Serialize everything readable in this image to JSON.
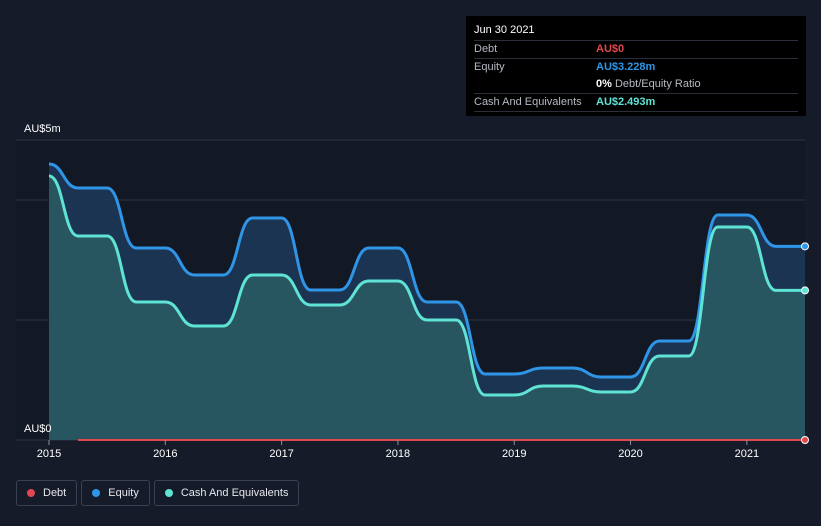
{
  "tooltip": {
    "date": "Jun 30 2021",
    "rows": [
      {
        "label": "Debt",
        "value": "AU$0",
        "color": "#e0484f"
      },
      {
        "label": "Equity",
        "value": "AU$3.228m",
        "color": "#2f95e6"
      },
      {
        "ratio_pct": "0%",
        "ratio_text": "Debt/Equity Ratio"
      },
      {
        "label": "Cash And Equivalents",
        "value": "AU$2.493m",
        "color": "#5ee3d4"
      }
    ]
  },
  "legend": [
    {
      "label": "Debt",
      "color": "#e0484f"
    },
    {
      "label": "Equity",
      "color": "#2f95e6"
    },
    {
      "label": "Cash And Equivalents",
      "color": "#5ee3d4"
    }
  ],
  "chart_data": {
    "type": "area",
    "y_top_label": "AU$5m",
    "y_bottom_label": "AU$0",
    "ylim": [
      0,
      5
    ],
    "xlim": [
      2014.9,
      2021.5
    ],
    "x_ticks": [
      {
        "value": 2015,
        "label": "2015"
      },
      {
        "value": 2016,
        "label": "2016"
      },
      {
        "value": 2017,
        "label": "2017"
      },
      {
        "value": 2018,
        "label": "2018"
      },
      {
        "value": 2019,
        "label": "2019"
      },
      {
        "value": 2020,
        "label": "2020"
      },
      {
        "value": 2021,
        "label": "2021"
      }
    ],
    "grid": true,
    "series": [
      {
        "name": "Equity",
        "color": "#2f95e6",
        "x": [
          2015.0,
          2015.25,
          2015.5,
          2015.75,
          2016.0,
          2016.25,
          2016.5,
          2016.75,
          2017.0,
          2017.25,
          2017.5,
          2017.75,
          2018.0,
          2018.25,
          2018.5,
          2018.75,
          2019.0,
          2019.25,
          2019.5,
          2019.75,
          2020.0,
          2020.25,
          2020.5,
          2020.75,
          2021.0,
          2021.25,
          2021.5
        ],
        "values": [
          4.6,
          4.2,
          4.2,
          3.2,
          3.2,
          2.75,
          2.75,
          3.7,
          3.7,
          2.5,
          2.5,
          3.2,
          3.2,
          2.3,
          2.3,
          1.1,
          1.1,
          1.2,
          1.2,
          1.05,
          1.05,
          1.65,
          1.65,
          3.75,
          3.75,
          3.228,
          3.228
        ]
      },
      {
        "name": "Cash And Equivalents",
        "color": "#5ee3d4",
        "x": [
          2015.0,
          2015.25,
          2015.5,
          2015.75,
          2016.0,
          2016.25,
          2016.5,
          2016.75,
          2017.0,
          2017.25,
          2017.5,
          2017.75,
          2018.0,
          2018.25,
          2018.5,
          2018.75,
          2019.0,
          2019.25,
          2019.5,
          2019.75,
          2020.0,
          2020.25,
          2020.5,
          2020.75,
          2021.0,
          2021.25,
          2021.5
        ],
        "values": [
          4.4,
          3.4,
          3.4,
          2.3,
          2.3,
          1.9,
          1.9,
          2.75,
          2.75,
          2.25,
          2.25,
          2.65,
          2.65,
          2.0,
          2.0,
          0.75,
          0.75,
          0.9,
          0.9,
          0.8,
          0.8,
          1.4,
          1.4,
          3.55,
          3.55,
          2.493,
          2.493
        ]
      },
      {
        "name": "Debt",
        "color": "#e0484f",
        "x": [
          2015.25,
          2021.5
        ],
        "values": [
          0,
          0
        ]
      }
    ]
  }
}
